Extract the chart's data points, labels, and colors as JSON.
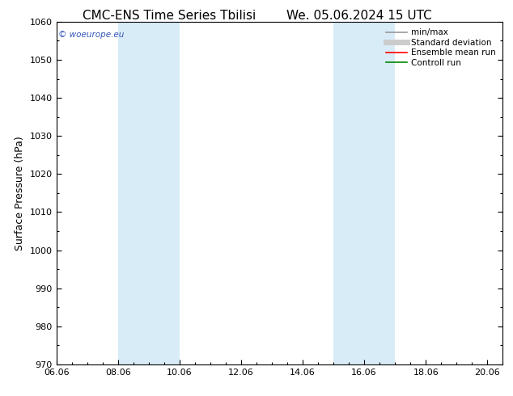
{
  "title": "CMC-ENS Time Series Tbilisi",
  "title2": "We. 05.06.2024 15 UTC",
  "ylabel": "Surface Pressure (hPa)",
  "ylim": [
    970,
    1060
  ],
  "yticks": [
    970,
    980,
    990,
    1000,
    1010,
    1020,
    1030,
    1040,
    1050,
    1060
  ],
  "xlim_start": 0,
  "xlim_end": 14.5,
  "xtick_labels": [
    "06.06",
    "08.06",
    "10.06",
    "12.06",
    "14.06",
    "16.06",
    "18.06",
    "20.06"
  ],
  "xtick_positions": [
    0,
    2,
    4,
    6,
    8,
    10,
    12,
    14
  ],
  "shaded_bands": [
    {
      "x_start": 2,
      "x_end": 4,
      "color": "#d8ecf8"
    },
    {
      "x_start": 9,
      "x_end": 11,
      "color": "#d8ecf8"
    }
  ],
  "watermark_text": "© woeurope.eu",
  "watermark_color": "#3355bb",
  "legend_items": [
    {
      "label": "min/max",
      "color": "#999999",
      "lw": 1.2,
      "linestyle": "-"
    },
    {
      "label": "Standard deviation",
      "color": "#cccccc",
      "lw": 5,
      "linestyle": "-"
    },
    {
      "label": "Ensemble mean run",
      "color": "#ff0000",
      "lw": 1.2,
      "linestyle": "-"
    },
    {
      "label": "Controll run",
      "color": "#008800",
      "lw": 1.2,
      "linestyle": "-"
    }
  ],
  "bg_color": "#ffffff",
  "title_fontsize": 11,
  "tick_fontsize": 8,
  "ylabel_fontsize": 9,
  "legend_fontsize": 7.5
}
